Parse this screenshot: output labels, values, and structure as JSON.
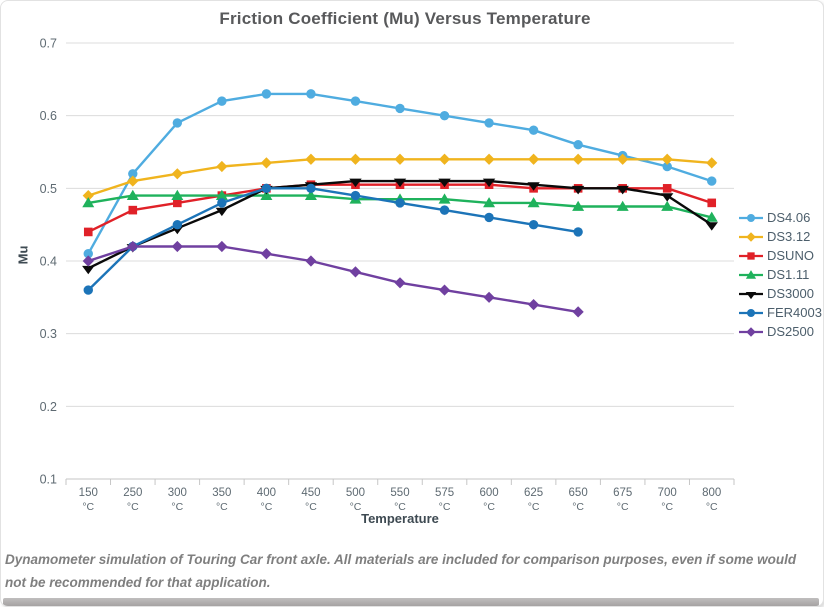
{
  "page": {
    "caption": "Dynamometer simulation of Touring Car front axle. All materials are included for comparison purposes, even if some would not be recommended for that application."
  },
  "chart_data": {
    "type": "line",
    "title": "Friction Coefficient (Mu) Versus Temperature",
    "xlabel": "Temperature",
    "ylabel": "Mu",
    "ylim": [
      0.1,
      0.7
    ],
    "ytick_step": 0.1,
    "grid": true,
    "legend_position": "right",
    "categories": [
      "150",
      "250",
      "300",
      "350",
      "400",
      "450",
      "500",
      "550",
      "575",
      "600",
      "625",
      "650",
      "675",
      "700",
      "800"
    ],
    "category_unit": "°C",
    "series": [
      {
        "name": "DS4.06",
        "color": "#4FACE0",
        "marker": "circle",
        "values": [
          0.41,
          0.52,
          0.59,
          0.62,
          0.63,
          0.63,
          0.62,
          0.61,
          0.6,
          0.59,
          0.58,
          0.56,
          0.545,
          0.53,
          0.51
        ]
      },
      {
        "name": "DS3.12",
        "color": "#F0B41E",
        "marker": "diamond",
        "values": [
          0.49,
          0.51,
          0.52,
          0.53,
          0.535,
          0.54,
          0.54,
          0.54,
          0.54,
          0.54,
          0.54,
          0.54,
          0.54,
          0.54,
          0.535
        ]
      },
      {
        "name": "DSUNO",
        "color": "#E02128",
        "marker": "square",
        "values": [
          0.44,
          0.47,
          0.48,
          0.49,
          0.5,
          0.505,
          0.505,
          0.505,
          0.505,
          0.505,
          0.5,
          0.5,
          0.5,
          0.5,
          0.48
        ]
      },
      {
        "name": "DS1.11",
        "color": "#1FB25C",
        "marker": "triangle-up",
        "values": [
          0.48,
          0.49,
          0.49,
          0.49,
          0.49,
          0.49,
          0.485,
          0.485,
          0.485,
          0.48,
          0.48,
          0.475,
          0.475,
          0.475,
          0.46
        ]
      },
      {
        "name": "DS3000",
        "color": "#0A0A0A",
        "marker": "triangle-down",
        "values": [
          0.39,
          0.42,
          0.445,
          0.47,
          0.5,
          0.505,
          0.51,
          0.51,
          0.51,
          0.51,
          0.505,
          0.5,
          0.5,
          0.49,
          0.45
        ]
      },
      {
        "name": "FER4003",
        "color": "#1C74B8",
        "marker": "circle",
        "values": [
          0.36,
          0.42,
          0.45,
          0.48,
          0.5,
          0.5,
          0.49,
          0.48,
          0.47,
          0.46,
          0.45,
          0.44,
          null,
          null,
          null
        ]
      },
      {
        "name": "DS2500",
        "color": "#7040A0",
        "marker": "diamond",
        "values": [
          0.4,
          0.42,
          0.42,
          0.42,
          0.41,
          0.4,
          0.385,
          0.37,
          0.36,
          0.35,
          0.34,
          0.33,
          null,
          null,
          null
        ]
      }
    ]
  },
  "style_colors": {
    "title": "#58595b",
    "tick_labels": "#5e6a72",
    "axis_titles": "#3e4a52",
    "legend_text": "#4c5e6b",
    "gridline": "#dcdcdc",
    "axis_line": "#c6c6c6",
    "caption": "#7f7f7f"
  }
}
